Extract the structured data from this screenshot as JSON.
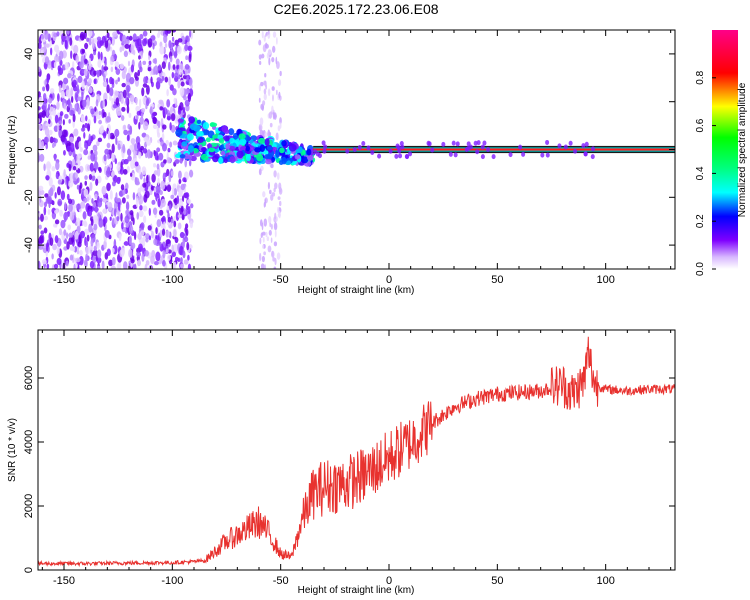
{
  "title": "C2E6.2025.172.23.06.E08",
  "chart_data": [
    {
      "type": "heatmap",
      "xlabel": "Height of straight line (km)",
      "ylabel": "Frequency (Hz)",
      "xlim": [
        -162,
        132
      ],
      "ylim": [
        -50,
        50
      ],
      "xticks": [
        -150,
        -100,
        -50,
        0,
        50,
        100
      ],
      "yticks": [
        -40,
        -20,
        0,
        20,
        40
      ],
      "colorbar": {
        "label": "Normalized spectral amplitude",
        "range": [
          0.0,
          1.0
        ],
        "ticks": [
          0.0,
          0.2,
          0.4,
          0.6,
          0.8
        ],
        "colormap": [
          "#ffffff",
          "#7f00ff",
          "#0000ff",
          "#00ffff",
          "#00ff00",
          "#ffff00",
          "#ff0000",
          "#ff00aa"
        ]
      },
      "regions": [
        {
          "x": [
            -162,
            -91
          ],
          "freq_range": [
            -50,
            50
          ],
          "amplitude": 0.05
        },
        {
          "x": [
            -60,
            -50
          ],
          "freq_range": [
            -50,
            50
          ],
          "amplitude": 0.03
        },
        {
          "x": [
            -97,
            -35
          ],
          "freq_center": [
            5,
            2,
            -2,
            -3
          ],
          "amplitude": 0.3
        },
        {
          "x": [
            -35,
            132
          ],
          "freq_center": 0,
          "amplitude": 0.95
        }
      ],
      "grid": false
    },
    {
      "type": "line",
      "xlabel": "Height of straight line (km)",
      "ylabel": "SNR (10 * v/v)",
      "xlim": [
        -162,
        132
      ],
      "ylim": [
        0,
        7500
      ],
      "xticks": [
        -150,
        -100,
        -50,
        0,
        50,
        100
      ],
      "yticks": [
        0,
        2000,
        4000,
        6000
      ],
      "color": "#e8322f",
      "x": [
        -162,
        -140,
        -120,
        -100,
        -90,
        -85,
        -80,
        -75,
        -70,
        -65,
        -60,
        -55,
        -50,
        -45,
        -40,
        -35,
        -30,
        -20,
        -10,
        0,
        10,
        20,
        30,
        40,
        50,
        60,
        70,
        75,
        80,
        85,
        90,
        92,
        95,
        100,
        110,
        120,
        132
      ],
      "y": [
        200,
        200,
        220,
        230,
        260,
        300,
        600,
        900,
        1100,
        1300,
        1500,
        1100,
        500,
        400,
        1600,
        2400,
        2600,
        2700,
        3000,
        3500,
        4000,
        4600,
        5100,
        5350,
        5500,
        5550,
        5600,
        5700,
        5800,
        5500,
        5900,
        6800,
        5800,
        5650,
        5600,
        5650,
        5650
      ]
    }
  ]
}
